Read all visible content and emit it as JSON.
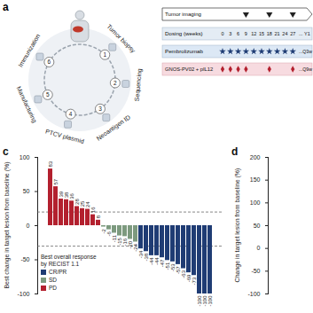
{
  "panel_a": {
    "label": "a",
    "steps": [
      {
        "number": 1,
        "label": "Tumor biopsy"
      },
      {
        "number": 2,
        "label": "Sequencing"
      },
      {
        "number": 3,
        "label": "Neoantigen ID"
      },
      {
        "number": 4,
        "label": "PTCV plasmid"
      },
      {
        "number": 5,
        "label": "Manufacturing"
      },
      {
        "number": 6,
        "label": "Immunization"
      }
    ]
  },
  "schedule": {
    "imaging_label": "Tumor imaging",
    "dosing_label": "Dosing (weeks)",
    "weeks": [
      0,
      3,
      6,
      9,
      12,
      15,
      18,
      21,
      24,
      27
    ],
    "weeks_after": "... Y1",
    "imaging_weeks": [
      9,
      18,
      27
    ],
    "pembrolizumab_label": "Pembrolizumab",
    "pembrolizumab_weeks": [
      0,
      3,
      6,
      9,
      12,
      15,
      18,
      21,
      24,
      27
    ],
    "pembrolizumab_after": "...Q3w",
    "vaccine_label": "GNOS-PV02 + pIL12",
    "vaccine_weeks": [
      0,
      3,
      6,
      9,
      18,
      27
    ],
    "vaccine_after": "...Q9w"
  },
  "chart_data": [
    {
      "panel": "c",
      "type": "bar",
      "ylabel": "Best change in target lesion from baseline (%)",
      "categories": [
        null,
        null,
        null,
        null,
        null,
        null,
        null,
        null,
        null,
        null,
        null,
        null,
        null,
        null,
        null,
        null,
        null,
        null,
        null,
        null,
        null,
        null,
        null,
        null,
        null,
        null,
        null,
        null,
        null,
        null,
        null
      ],
      "series": [
        {
          "name": "CR/PR",
          "color": "#1f3c74",
          "values": [
            null,
            null,
            null,
            null,
            null,
            null,
            null,
            null,
            null,
            null,
            null,
            null,
            null,
            null,
            null,
            null,
            null,
            -34,
            -38,
            -44,
            -44,
            -47,
            -51,
            -53,
            -57,
            -63,
            -69,
            -73,
            -100,
            -100,
            -100
          ]
        },
        {
          "name": "SD",
          "color": "#7d9a7f",
          "values": [
            null,
            null,
            null,
            null,
            null,
            null,
            null,
            null,
            null,
            null,
            -2,
            -6,
            -11,
            -15,
            -16,
            -20,
            -24,
            null,
            null,
            null,
            null,
            null,
            null,
            null,
            null,
            null,
            null,
            null,
            null,
            null,
            null
          ]
        },
        {
          "name": "PD",
          "color": "#b3202e",
          "values": [
            83,
            57,
            39,
            38,
            36,
            28,
            25,
            24,
            16,
            8,
            null,
            null,
            null,
            null,
            null,
            null,
            null,
            null,
            null,
            null,
            null,
            null,
            null,
            null,
            null,
            null,
            null,
            null,
            null,
            null,
            null
          ]
        }
      ],
      "ylim": [
        -100,
        100
      ],
      "yticks": [
        -100,
        -50,
        0,
        50,
        100
      ],
      "reference_lines": [
        20,
        -30
      ],
      "data_labels": true,
      "legend": "bottom-left",
      "legend_title": "Best overall response by RECIST 1.1"
    },
    {
      "panel": "d",
      "type": "line",
      "ylabel": "Change in target lesion from baseline (%)",
      "ylim": [
        -100,
        200
      ],
      "yticks": [
        -100,
        -50,
        0,
        50,
        100,
        150,
        200
      ]
    }
  ]
}
